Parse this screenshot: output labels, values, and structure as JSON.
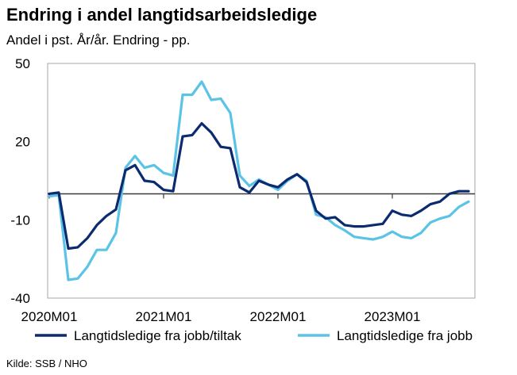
{
  "title": "Endring i andel langtidsarbeidsledige",
  "subtitle": "Andel i pst. År/år. Endring - pp.",
  "source": "Kilde: SSB / NHO",
  "chart_data": {
    "type": "line",
    "title": "Endring i andel langtidsarbeidsledige",
    "subtitle": "Andel i pst. År/år. Endring - pp.",
    "xlabel": "",
    "ylabel": "",
    "ylim": [
      -40,
      50
    ],
    "y_ticks": [
      50,
      20,
      -10,
      -40
    ],
    "x_tick_labels": [
      "2020M01",
      "2021M01",
      "2022M01",
      "2023M01"
    ],
    "grid": false,
    "legend_position": "bottom",
    "colors": {
      "series1": "#0b2a6f",
      "series2": "#5bc3e6",
      "baseline": "#3a3a3a",
      "frame": "#a6a6a6"
    },
    "x": [
      "2020M01",
      "2020M02",
      "2020M03",
      "2020M04",
      "2020M05",
      "2020M06",
      "2020M07",
      "2020M08",
      "2020M09",
      "2020M10",
      "2020M11",
      "2020M12",
      "2021M01",
      "2021M02",
      "2021M03",
      "2021M04",
      "2021M05",
      "2021M06",
      "2021M07",
      "2021M08",
      "2021M09",
      "2021M10",
      "2021M11",
      "2021M12",
      "2022M01",
      "2022M02",
      "2022M03",
      "2022M04",
      "2022M05",
      "2022M06",
      "2022M07",
      "2022M08",
      "2022M09",
      "2022M10",
      "2022M11",
      "2022M12",
      "2023M01",
      "2023M02",
      "2023M03",
      "2023M04",
      "2023M05",
      "2023M06",
      "2023M07",
      "2023M08",
      "2023M09"
    ],
    "series": [
      {
        "name": "Langtidsledige fra jobb/tiltak",
        "values": [
          0,
          0.5,
          -21,
          -20.5,
          -17,
          -12,
          -8.5,
          -6,
          9,
          11,
          5,
          4.5,
          1.5,
          1,
          22,
          22.5,
          27,
          23.5,
          18,
          17.5,
          2.5,
          0.5,
          5,
          3.5,
          2.5,
          5.5,
          7.5,
          4.5,
          -6.5,
          -9.5,
          -9,
          -12,
          -12.5,
          -12.5,
          -12,
          -11.5,
          -6.5,
          -8,
          -8.5,
          -6.5,
          -4,
          -3,
          0,
          1,
          1
        ]
      },
      {
        "name": "Langtidsledige fra jobb",
        "values": [
          -1,
          -0.5,
          -33,
          -32.5,
          -28,
          -21.5,
          -21.5,
          -15,
          10,
          14.5,
          10,
          11,
          8,
          7,
          38,
          38,
          43,
          36,
          36.5,
          31,
          7,
          3,
          5.5,
          3.5,
          1.5,
          5,
          7.5,
          5,
          -8,
          -9,
          -12,
          -14,
          -16.5,
          -17,
          -17.5,
          -16.5,
          -14.5,
          -16.5,
          -17,
          -15,
          -11,
          -9.5,
          -8.5,
          -5,
          -3
        ]
      }
    ]
  }
}
